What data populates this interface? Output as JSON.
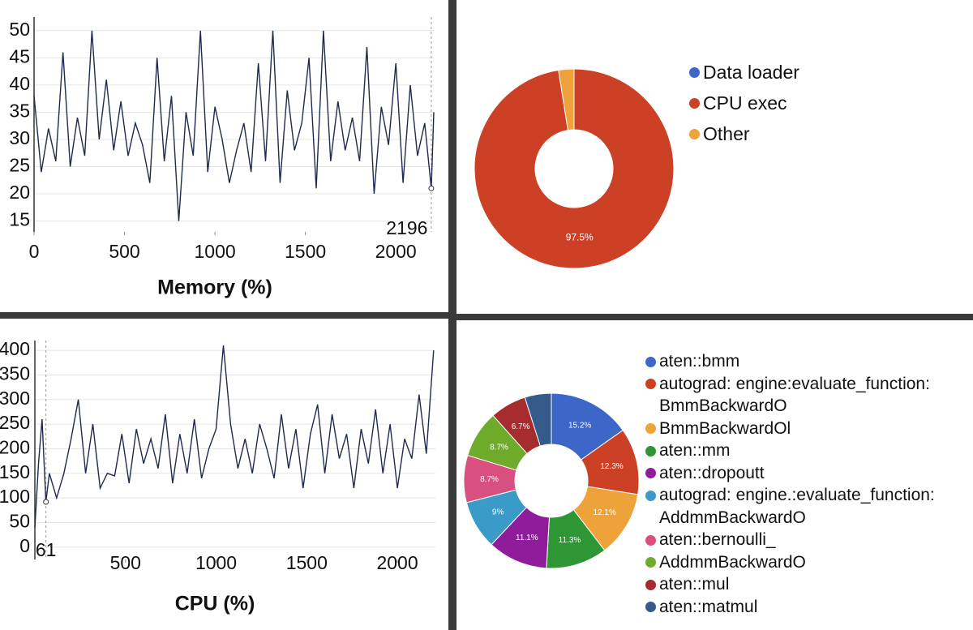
{
  "chart_data": [
    {
      "type": "line",
      "xlabel": "Memory (%)",
      "x": [
        0,
        40,
        80,
        120,
        160,
        200,
        240,
        280,
        320,
        360,
        400,
        440,
        480,
        520,
        560,
        600,
        640,
        680,
        720,
        760,
        800,
        840,
        880,
        920,
        960,
        1000,
        1040,
        1080,
        1120,
        1160,
        1200,
        1240,
        1280,
        1320,
        1360,
        1400,
        1440,
        1480,
        1520,
        1560,
        1600,
        1640,
        1680,
        1720,
        1760,
        1800,
        1840,
        1880,
        1920,
        1960,
        2000,
        2040,
        2080,
        2120,
        2160,
        2196,
        2210
      ],
      "series": [
        {
          "color": "#1f2a4d",
          "values": [
            38,
            24,
            32,
            26,
            46,
            25,
            34,
            27,
            50,
            30,
            41,
            28,
            37,
            27,
            33,
            29,
            22,
            45,
            26,
            38,
            15,
            35,
            27,
            50,
            24,
            36,
            30,
            22,
            28,
            33,
            24,
            44,
            26,
            50,
            22,
            39,
            28,
            33,
            45,
            21,
            50,
            26,
            37,
            28,
            34,
            26,
            47,
            20,
            36,
            29,
            44,
            22,
            40,
            27,
            33,
            21,
            35
          ]
        }
      ],
      "xlim": [
        0,
        2210
      ],
      "ylim": [
        13,
        52.5
      ],
      "xticks": [
        0,
        500,
        1000,
        1500,
        2000
      ],
      "yticks": [
        15,
        20,
        25,
        30,
        35,
        40,
        45,
        50
      ],
      "grid": true,
      "cursor": {
        "x": 2196,
        "y": 21
      }
    },
    {
      "type": "donut",
      "categories": [
        "Data loader",
        "CPU exec",
        "Other"
      ],
      "colors": [
        "#3d66c9",
        "#cc4126",
        "#eea23a"
      ],
      "values": [
        0,
        97.5,
        2.5
      ],
      "value_labels": [
        null,
        "97.5%",
        null
      ]
    },
    {
      "type": "line",
      "xlabel": "CPU (%)",
      "x": [
        0,
        20,
        40,
        61,
        80,
        120,
        160,
        200,
        240,
        280,
        320,
        360,
        400,
        440,
        480,
        520,
        560,
        600,
        640,
        680,
        720,
        760,
        800,
        840,
        880,
        920,
        960,
        1000,
        1040,
        1080,
        1120,
        1160,
        1200,
        1240,
        1280,
        1320,
        1360,
        1400,
        1440,
        1480,
        1520,
        1560,
        1600,
        1640,
        1680,
        1720,
        1760,
        1800,
        1840,
        1880,
        1920,
        1960,
        2000,
        2040,
        2080,
        2120,
        2160,
        2200
      ],
      "series": [
        {
          "color": "#1f2a4d",
          "values": [
            40,
            170,
            260,
            92,
            150,
            100,
            150,
            220,
            300,
            150,
            250,
            120,
            150,
            145,
            230,
            130,
            240,
            170,
            220,
            160,
            270,
            130,
            230,
            150,
            260,
            140,
            200,
            240,
            410,
            250,
            160,
            220,
            150,
            250,
            200,
            140,
            270,
            160,
            240,
            120,
            230,
            290,
            150,
            270,
            180,
            230,
            120,
            240,
            170,
            280,
            150,
            250,
            120,
            220,
            180,
            310,
            190,
            400
          ]
        }
      ],
      "xlim": [
        0,
        2210
      ],
      "ylim": [
        -25,
        420
      ],
      "xticks": [
        500,
        1000,
        1500,
        2000
      ],
      "yticks": [
        0,
        50,
        100,
        150,
        200,
        250,
        300,
        350,
        400
      ],
      "grid": true,
      "cursor": {
        "x": 61,
        "y": 92
      }
    },
    {
      "type": "donut",
      "categories": [
        "aten::bmm",
        "autograd: engine:evaluate_function: BmmBackwardO",
        "BmmBackwardOl",
        "aten::mm",
        "aten::dropoutt",
        "autograd: engine.:evaluate_function: AddmmBackwardO",
        "aten::bernoulli_",
        "AddmmBackwardO",
        "aten::mul",
        "aten::matmul"
      ],
      "colors": [
        "#3d66c9",
        "#cc4126",
        "#eea23a",
        "#2f9635",
        "#8e1c9b",
        "#3b9bc8",
        "#d7507f",
        "#6fab2b",
        "#a62c2d",
        "#355b8b"
      ],
      "values": [
        15.2,
        12.3,
        12.1,
        11.3,
        11.1,
        9,
        8.7,
        8.7,
        6.7,
        4.9
      ],
      "value_labels": [
        "15.2%",
        "12.3%",
        "12.1%",
        "11.3%",
        "11.1%",
        "9%",
        "8.7%",
        "8.7%",
        "6.7%",
        null
      ]
    }
  ]
}
